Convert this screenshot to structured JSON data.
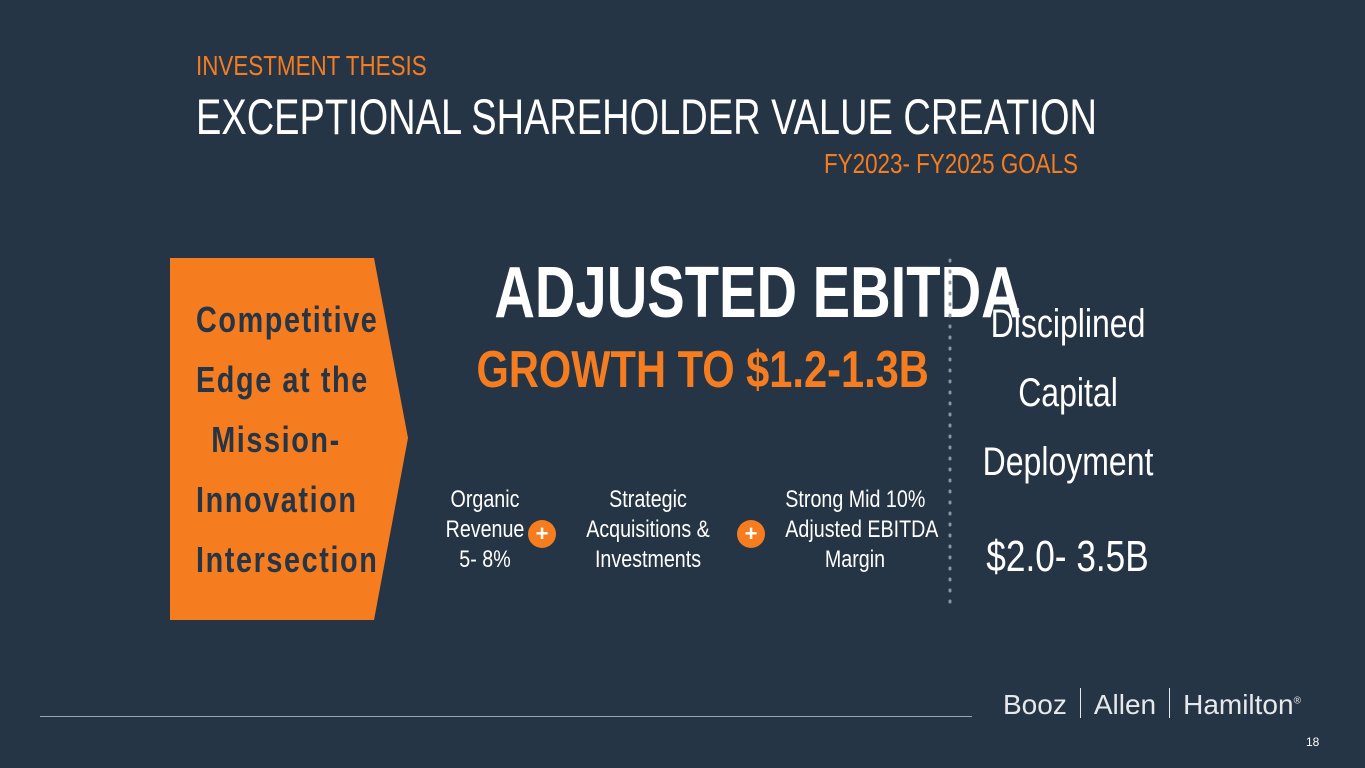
{
  "header": {
    "kicker": "INVESTMENT THESIS",
    "title": "EXCEPTIONAL SHAREHOLDER VALUE CREATION",
    "subtitle": "FY2023- FY2025 GOALS"
  },
  "arrow": {
    "lines": [
      "Competitive",
      "Edge at the",
      "Mission-",
      "Innovation",
      "Intersection"
    ]
  },
  "main": {
    "title": "ADJUSTED EBITDA",
    "subtitle": "GROWTH TO $1.2-1.3B",
    "drivers": [
      [
        "Organic",
        "Revenue",
        "5- 8%"
      ],
      [
        "Strategic",
        "Acquisitions &",
        "Investments"
      ],
      [
        "Strong Mid 10%",
        "Adjusted EBITDA",
        "Margin"
      ]
    ],
    "operators": [
      "+",
      "+"
    ]
  },
  "capital": {
    "lines": [
      "Disciplined",
      "Capital",
      "Deployment"
    ],
    "amount": "$2.0- 3.5B"
  },
  "footer": {
    "logo": [
      "Booz",
      "Allen",
      "Hamilton"
    ],
    "mark": "®",
    "page": "18"
  }
}
